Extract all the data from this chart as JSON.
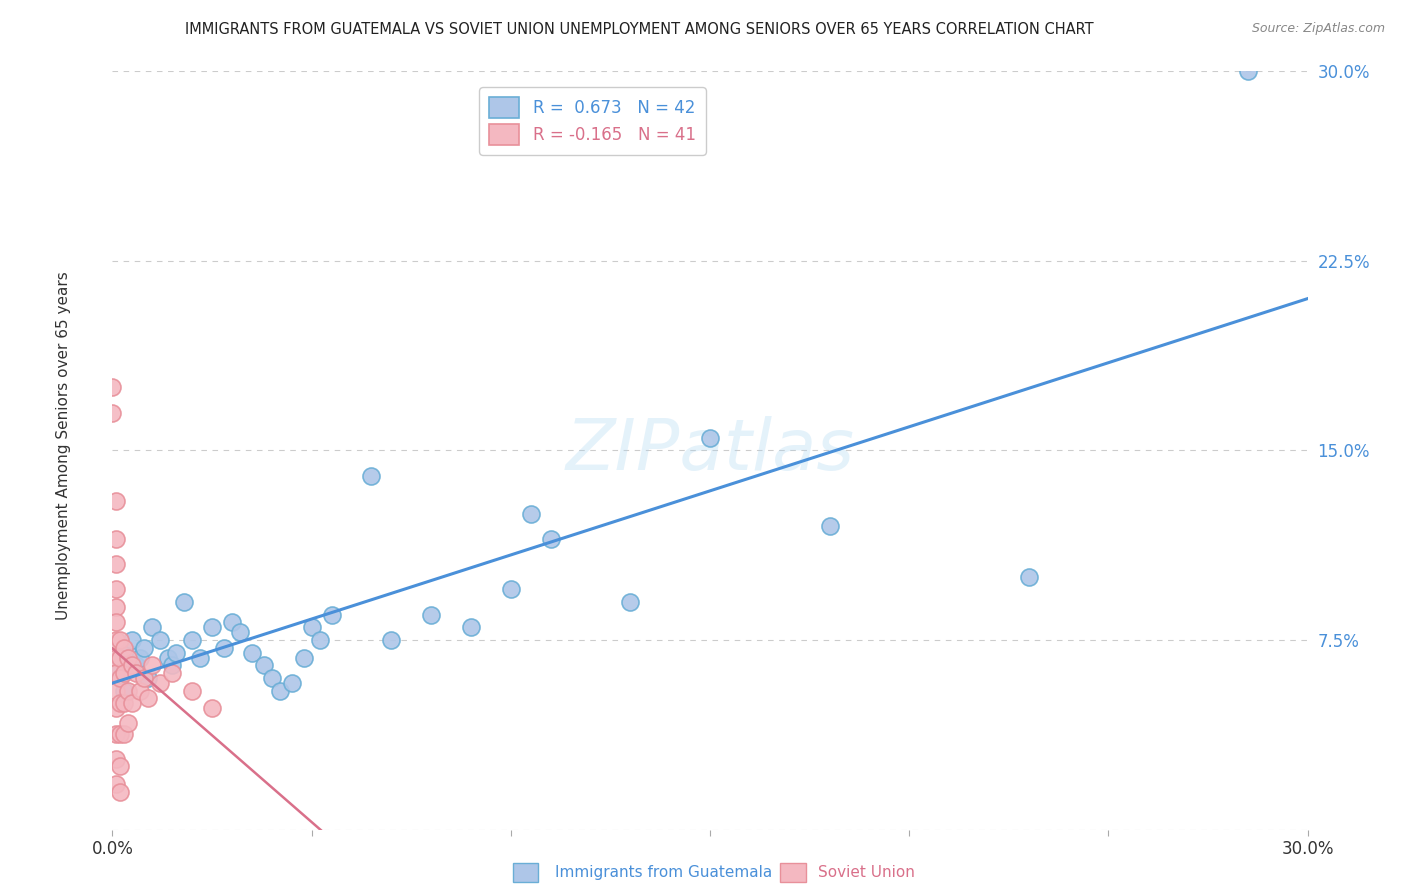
{
  "title": "IMMIGRANTS FROM GUATEMALA VS SOVIET UNION UNEMPLOYMENT AMONG SENIORS OVER 65 YEARS CORRELATION CHART",
  "source": "Source: ZipAtlas.com",
  "ylabel": "Unemployment Among Seniors over 65 years",
  "xlim": [
    0,
    0.3
  ],
  "ylim": [
    0,
    0.3
  ],
  "yticks": [
    0.0,
    0.075,
    0.15,
    0.225,
    0.3
  ],
  "ytick_labels": [
    "",
    "7.5%",
    "15.0%",
    "22.5%",
    "30.0%"
  ],
  "xtick_labels_show": [
    "0.0%",
    "30.0%"
  ],
  "guatemala_R": 0.673,
  "guatemala_N": 42,
  "soviet_R": -0.165,
  "soviet_N": 41,
  "guatemala_fill_color": "#aec6e8",
  "soviet_fill_color": "#f4b8c1",
  "guatemala_edge_color": "#6aaed6",
  "soviet_edge_color": "#e8909a",
  "guatemala_line_color": "#4a90d9",
  "soviet_line_color": "#d9708a",
  "tick_color": "#4a90d9",
  "watermark_text": "ZIPatlas",
  "guatemala_points": [
    [
      0.001,
      0.062
    ],
    [
      0.002,
      0.068
    ],
    [
      0.003,
      0.055
    ],
    [
      0.004,
      0.07
    ],
    [
      0.005,
      0.075
    ],
    [
      0.006,
      0.065
    ],
    [
      0.007,
      0.068
    ],
    [
      0.008,
      0.072
    ],
    [
      0.009,
      0.06
    ],
    [
      0.01,
      0.08
    ],
    [
      0.012,
      0.075
    ],
    [
      0.014,
      0.068
    ],
    [
      0.015,
      0.065
    ],
    [
      0.016,
      0.07
    ],
    [
      0.018,
      0.09
    ],
    [
      0.02,
      0.075
    ],
    [
      0.022,
      0.068
    ],
    [
      0.025,
      0.08
    ],
    [
      0.028,
      0.072
    ],
    [
      0.03,
      0.082
    ],
    [
      0.032,
      0.078
    ],
    [
      0.035,
      0.07
    ],
    [
      0.038,
      0.065
    ],
    [
      0.04,
      0.06
    ],
    [
      0.042,
      0.055
    ],
    [
      0.045,
      0.058
    ],
    [
      0.048,
      0.068
    ],
    [
      0.05,
      0.08
    ],
    [
      0.052,
      0.075
    ],
    [
      0.055,
      0.085
    ],
    [
      0.065,
      0.14
    ],
    [
      0.07,
      0.075
    ],
    [
      0.08,
      0.085
    ],
    [
      0.09,
      0.08
    ],
    [
      0.1,
      0.095
    ],
    [
      0.105,
      0.125
    ],
    [
      0.11,
      0.115
    ],
    [
      0.13,
      0.09
    ],
    [
      0.15,
      0.155
    ],
    [
      0.18,
      0.12
    ],
    [
      0.23,
      0.1
    ],
    [
      0.285,
      0.3
    ]
  ],
  "soviet_points": [
    [
      0.0,
      0.175
    ],
    [
      0.0,
      0.165
    ],
    [
      0.001,
      0.13
    ],
    [
      0.001,
      0.115
    ],
    [
      0.001,
      0.105
    ],
    [
      0.001,
      0.095
    ],
    [
      0.001,
      0.088
    ],
    [
      0.001,
      0.082
    ],
    [
      0.001,
      0.075
    ],
    [
      0.001,
      0.068
    ],
    [
      0.001,
      0.062
    ],
    [
      0.001,
      0.055
    ],
    [
      0.001,
      0.048
    ],
    [
      0.001,
      0.038
    ],
    [
      0.001,
      0.028
    ],
    [
      0.001,
      0.018
    ],
    [
      0.002,
      0.075
    ],
    [
      0.002,
      0.068
    ],
    [
      0.002,
      0.06
    ],
    [
      0.002,
      0.05
    ],
    [
      0.002,
      0.038
    ],
    [
      0.002,
      0.025
    ],
    [
      0.002,
      0.015
    ],
    [
      0.003,
      0.072
    ],
    [
      0.003,
      0.062
    ],
    [
      0.003,
      0.05
    ],
    [
      0.003,
      0.038
    ],
    [
      0.004,
      0.068
    ],
    [
      0.004,
      0.055
    ],
    [
      0.004,
      0.042
    ],
    [
      0.005,
      0.065
    ],
    [
      0.005,
      0.05
    ],
    [
      0.006,
      0.062
    ],
    [
      0.007,
      0.055
    ],
    [
      0.008,
      0.06
    ],
    [
      0.009,
      0.052
    ],
    [
      0.01,
      0.065
    ],
    [
      0.012,
      0.058
    ],
    [
      0.015,
      0.062
    ],
    [
      0.02,
      0.055
    ],
    [
      0.025,
      0.048
    ]
  ],
  "background_color": "#ffffff",
  "grid_color": "#cccccc"
}
